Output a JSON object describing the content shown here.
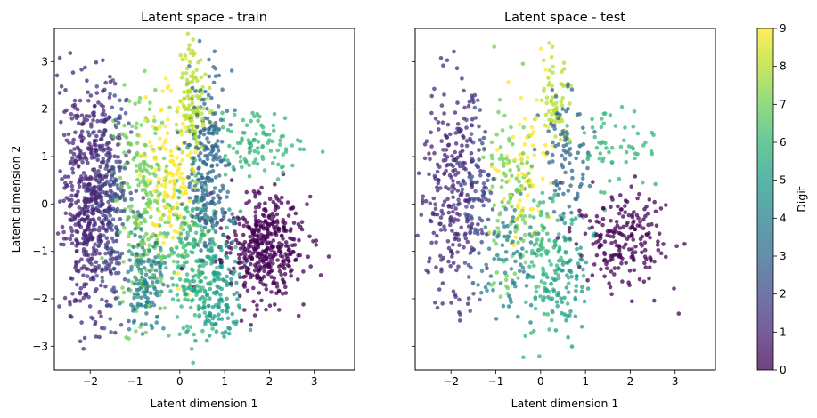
{
  "chart_data": [
    {
      "type": "scatter",
      "title": "Latent space - train",
      "xlabel": "Latent dimension 1",
      "ylabel": "Latent dimension 2",
      "xlim": [
        -2.8,
        3.9
      ],
      "ylim": [
        -3.5,
        3.7
      ],
      "xticks": [
        -2,
        -1,
        0,
        1,
        2,
        3
      ],
      "yticks": [
        -3,
        -2,
        -1,
        0,
        1,
        2,
        3
      ],
      "xtick_labels": [
        "−2",
        "−1",
        "0",
        "1",
        "2",
        "3"
      ],
      "ytick_labels": [
        "−3",
        "−2",
        "−1",
        "0",
        "1",
        "2",
        "3"
      ],
      "color_by": "Digit",
      "clusters": [
        {
          "digit": 0,
          "x": [
            1.85,
            0.45
          ],
          "y": [
            -0.9,
            0.55
          ],
          "n": 420
        },
        {
          "digit": 1,
          "x": [
            -2.05,
            0.3
          ],
          "y": [
            0.0,
            1.25
          ],
          "n": 520
        },
        {
          "digit": 2,
          "x": [
            -1.55,
            0.22
          ],
          "y": [
            0.2,
            1.1
          ],
          "n": 220
        },
        {
          "digit": 3,
          "x": [
            0.6,
            0.28
          ],
          "y": [
            1.2,
            0.8
          ],
          "n": 160
        },
        {
          "digit": 3,
          "x": [
            0.6,
            0.2
          ],
          "y": [
            0.0,
            0.5
          ],
          "n": 90
        },
        {
          "digit": 4,
          "x": [
            -0.8,
            0.25
          ],
          "y": [
            -1.6,
            0.6
          ],
          "n": 140
        },
        {
          "digit": 5,
          "x": [
            0.85,
            0.25
          ],
          "y": [
            -1.9,
            0.6
          ],
          "n": 140
        },
        {
          "digit": 6,
          "x": [
            0.25,
            0.28
          ],
          "y": [
            -1.2,
            0.85
          ],
          "n": 200
        },
        {
          "digit": 6,
          "x": [
            1.7,
            0.45
          ],
          "y": [
            1.3,
            0.35
          ],
          "n": 100
        },
        {
          "digit": 7,
          "x": [
            -0.8,
            0.3
          ],
          "y": [
            0.0,
            1.2
          ],
          "n": 230
        },
        {
          "digit": 8,
          "x": [
            0.3,
            0.18
          ],
          "y": [
            2.1,
            0.6
          ],
          "n": 120
        },
        {
          "digit": 9,
          "x": [
            -0.25,
            0.3
          ],
          "y": [
            0.6,
            0.9
          ],
          "n": 150
        }
      ]
    },
    {
      "type": "scatter",
      "title": "Latent space - test",
      "xlabel": "Latent dimension 1",
      "ylabel": "",
      "xlim": [
        -2.8,
        3.9
      ],
      "ylim": [
        -3.5,
        3.7
      ],
      "xticks": [
        -2,
        -1,
        0,
        1,
        2,
        3
      ],
      "yticks": [
        -3,
        -2,
        -1,
        0,
        1,
        2,
        3
      ],
      "xtick_labels": [
        "−2",
        "−1",
        "0",
        "1",
        "2",
        "3"
      ],
      "color_by": "Digit",
      "clusters": [
        {
          "digit": 0,
          "x": [
            1.8,
            0.5
          ],
          "y": [
            -0.8,
            0.5
          ],
          "n": 200
        },
        {
          "digit": 1,
          "x": [
            -2.0,
            0.35
          ],
          "y": [
            0.2,
            1.1
          ],
          "n": 250
        },
        {
          "digit": 2,
          "x": [
            -1.5,
            0.2
          ],
          "y": [
            0.3,
            1.0
          ],
          "n": 100
        },
        {
          "digit": 3,
          "x": [
            0.6,
            0.25
          ],
          "y": [
            1.0,
            0.8
          ],
          "n": 90
        },
        {
          "digit": 4,
          "x": [
            -0.7,
            0.3
          ],
          "y": [
            -1.2,
            0.6
          ],
          "n": 80
        },
        {
          "digit": 5,
          "x": [
            0.6,
            0.25
          ],
          "y": [
            -1.6,
            0.6
          ],
          "n": 80
        },
        {
          "digit": 6,
          "x": [
            0.1,
            0.3
          ],
          "y": [
            -1.3,
            0.8
          ],
          "n": 100
        },
        {
          "digit": 6,
          "x": [
            1.6,
            0.5
          ],
          "y": [
            1.2,
            0.4
          ],
          "n": 60
        },
        {
          "digit": 7,
          "x": [
            -0.7,
            0.3
          ],
          "y": [
            0.2,
            1.1
          ],
          "n": 110
        },
        {
          "digit": 8,
          "x": [
            0.3,
            0.2
          ],
          "y": [
            2.2,
            0.5
          ],
          "n": 60
        },
        {
          "digit": 9,
          "x": [
            -0.3,
            0.3
          ],
          "y": [
            0.6,
            0.9
          ],
          "n": 70
        }
      ]
    }
  ],
  "colorbar": {
    "label": "Digit",
    "ticks": [
      "0",
      "1",
      "2",
      "3",
      "4",
      "5",
      "6",
      "7",
      "8",
      "9"
    ],
    "range": [
      0,
      9
    ],
    "colors": [
      "#440154",
      "#482878",
      "#3e4989",
      "#31688e",
      "#26828e",
      "#1f9e89",
      "#35b779",
      "#6ece58",
      "#b5de2b",
      "#fde725"
    ],
    "alpha": 0.75
  }
}
